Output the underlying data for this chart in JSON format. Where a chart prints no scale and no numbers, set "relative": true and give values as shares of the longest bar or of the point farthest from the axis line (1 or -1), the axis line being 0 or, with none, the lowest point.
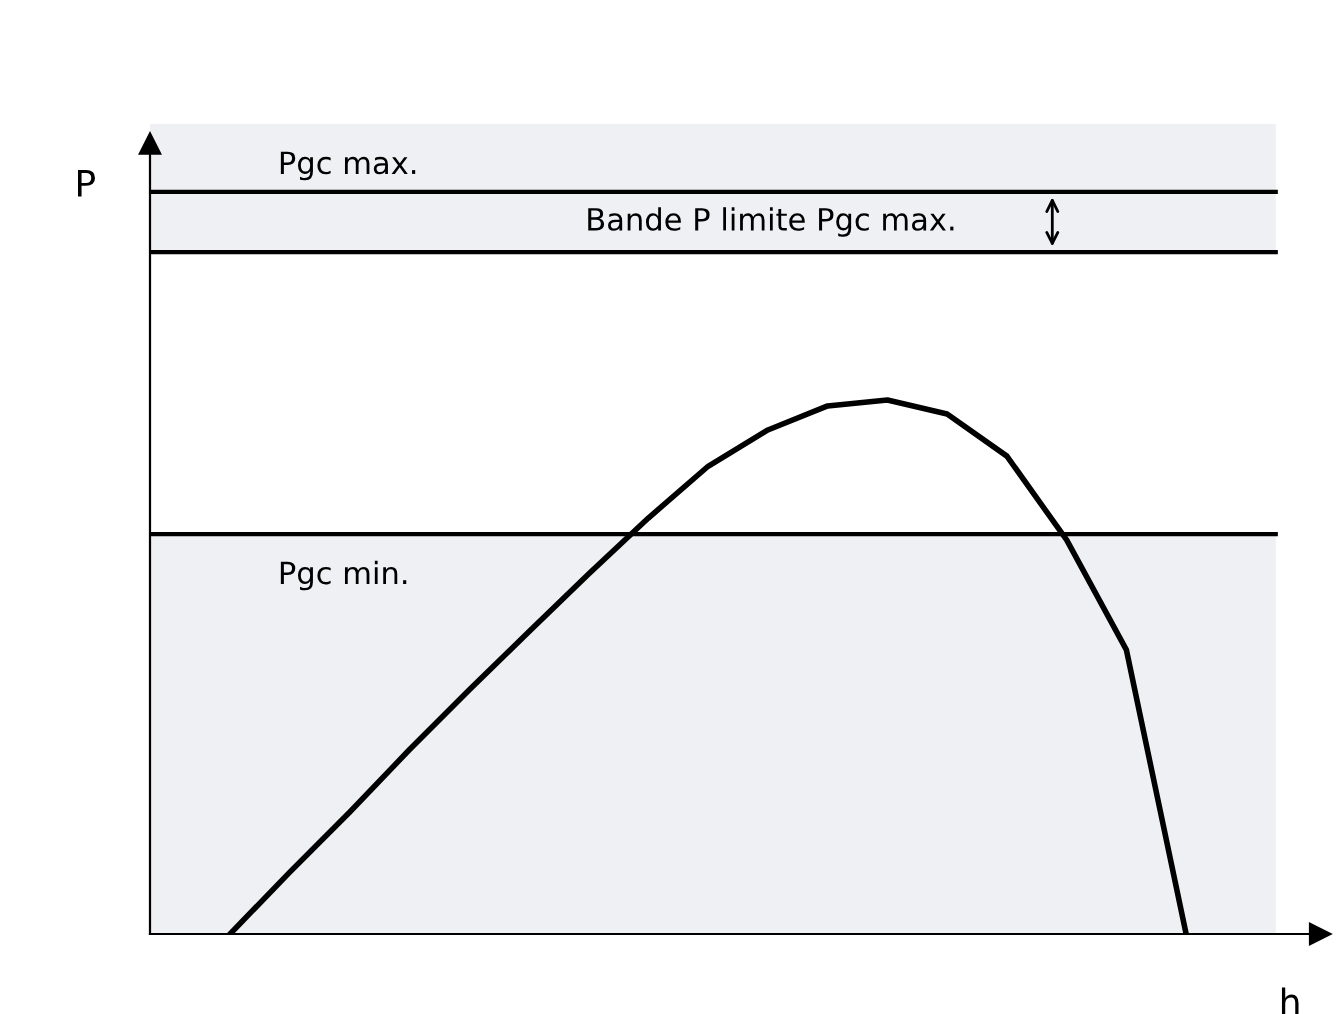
{
  "chart_data": {
    "type": "line",
    "relative": true,
    "xlabel": "h",
    "annotations": [
      "P"
    ],
    "categories": [
      null,
      null,
      null,
      null,
      null,
      null,
      null,
      null,
      null,
      null,
      null,
      null,
      null,
      null,
      null,
      null,
      null
    ],
    "series": [
      {
        "color": "#000000",
        "values": [
          0,
          0.116,
          0.228,
          0.345,
          0.457,
          0.566,
          0.674,
          0.779,
          0.876,
          0.944,
          0.989,
          1,
          0.974,
          0.895,
          0.738,
          0.532,
          0
        ]
      }
    ],
    "bands": [
      {
        "axis": "y",
        "from": 1.39,
        "to": 1.517,
        "label": "Pgc max.",
        "color": "#eef0f3"
      },
      {
        "axis": "y",
        "from": 1.277,
        "to": 1.39,
        "label": "Bande P limite Pgc max.",
        "color": "#eef0f3"
      },
      {
        "axis": "y",
        "from": 0,
        "to": 0.749,
        "label": "Pgc min.",
        "color": "#eef0f3"
      }
    ],
    "ref_lines": [
      {
        "axis": "y",
        "value": 1.39,
        "color": "#000000"
      },
      {
        "axis": "y",
        "value": 1.277,
        "color": "#000000"
      },
      {
        "axis": "y",
        "value": 0.749,
        "color": "#000000"
      }
    ],
    "marker": "none",
    "line_style": "solid"
  }
}
